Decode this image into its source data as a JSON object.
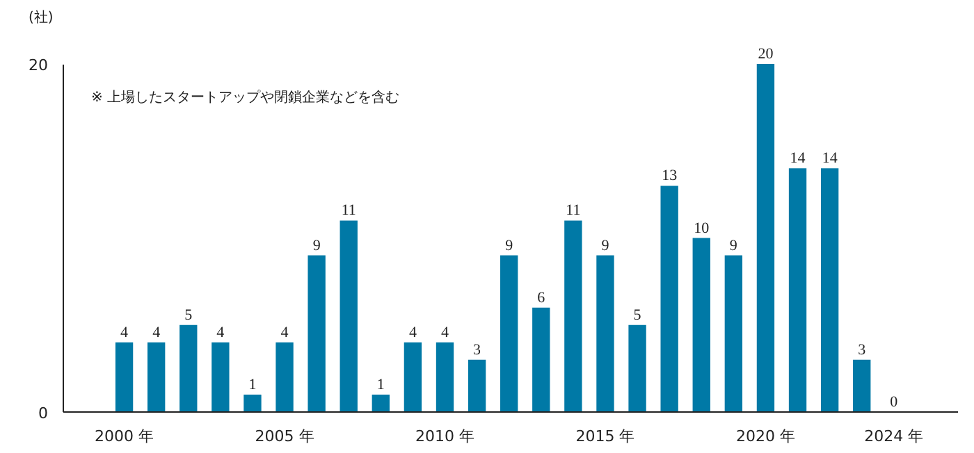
{
  "chart_data": {
    "type": "bar",
    "ylabel": "(社)",
    "x": [
      2000,
      2001,
      2002,
      2003,
      2004,
      2005,
      2006,
      2007,
      2008,
      2009,
      2010,
      2011,
      2012,
      2013,
      2014,
      2015,
      2016,
      2017,
      2018,
      2019,
      2020,
      2021,
      2022,
      2023,
      2024
    ],
    "values": [
      4,
      4,
      5,
      4,
      1,
      4,
      9,
      11,
      1,
      4,
      4,
      3,
      9,
      6,
      11,
      9,
      5,
      13,
      10,
      9,
      20,
      14,
      14,
      3,
      0
    ],
    "color": "#0079a6",
    "xlim": [
      1998.1,
      2026
    ],
    "xticks": [
      {
        "value": 2000,
        "label": "2000 年"
      },
      {
        "value": 2005,
        "label": "2005 年"
      },
      {
        "value": 2010,
        "label": "2010 年"
      },
      {
        "value": 2015,
        "label": "2015 年"
      },
      {
        "value": 2020,
        "label": "2020 年"
      },
      {
        "value": 2024,
        "label": "2024 年"
      }
    ],
    "ylim": [
      0,
      20
    ],
    "yticks": [
      0,
      20
    ],
    "grid": false,
    "data_labels": true,
    "annotations": [
      "※ 上場したスタートアップや閉鎖企業などを含む"
    ]
  }
}
